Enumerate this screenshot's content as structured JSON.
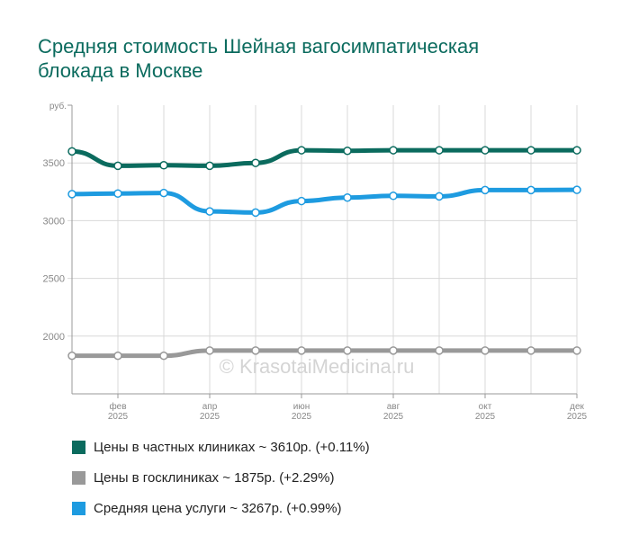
{
  "chart_data": {
    "type": "line",
    "title": "Средняя стоимость Шейная вагосимпатическая блокада в Москве",
    "ylabel": "руб.",
    "ylim": [
      1500,
      4000
    ],
    "yticks": [
      2000,
      2500,
      3000,
      3500
    ],
    "x": [
      "янв 2025",
      "фев 2025",
      "мар 2025",
      "апр 2025",
      "май 2025",
      "июн 2025",
      "июл 2025",
      "авг 2025",
      "сен 2025",
      "окт 2025",
      "ноя 2025",
      "дек 2025"
    ],
    "xtick_labels": [
      {
        "i": 1,
        "m": "фев",
        "y": "2025"
      },
      {
        "i": 3,
        "m": "апр",
        "y": "2025"
      },
      {
        "i": 5,
        "m": "июн",
        "y": "2025"
      },
      {
        "i": 7,
        "m": "авг",
        "y": "2025"
      },
      {
        "i": 9,
        "m": "окт",
        "y": "2025"
      },
      {
        "i": 11,
        "m": "дек",
        "y": "2025"
      }
    ],
    "grid": true,
    "legend_position": "bottom",
    "watermark": "© KrasotaiMedicina.ru",
    "series": [
      {
        "name": "Цены в частных клиниках ~ 3610р. (+0.11%)",
        "color": "#0b6b5e",
        "values": [
          3600,
          3475,
          3480,
          3475,
          3500,
          3610,
          3605,
          3610,
          3610,
          3610,
          3610,
          3610
        ]
      },
      {
        "name": "Цены в госклиниках ~ 1875р. (+2.29%)",
        "color": "#999999",
        "values": [
          1830,
          1830,
          1830,
          1875,
          1875,
          1875,
          1875,
          1875,
          1875,
          1875,
          1875,
          1875
        ]
      },
      {
        "name": "Средняя цена услуги ~ 3267р. (+0.99%)",
        "color": "#1e9be0",
        "values": [
          3230,
          3235,
          3240,
          3080,
          3070,
          3170,
          3200,
          3215,
          3210,
          3265,
          3265,
          3267
        ]
      }
    ]
  }
}
